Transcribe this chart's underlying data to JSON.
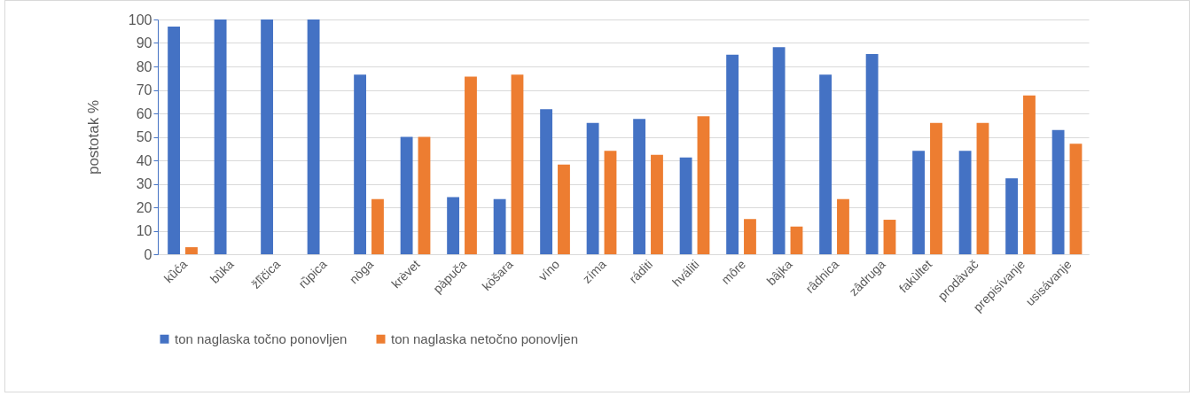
{
  "chart_data": {
    "type": "bar",
    "ylabel": "postotak %",
    "categories": [
      "kȕća",
      "bȕka",
      "žlȉčica",
      "rȕpica",
      "nòga",
      "krèvet",
      "pàpuča",
      "kòšara",
      "víno",
      "zíma",
      "ráditi",
      "hváliti",
      "môre",
      "bâjka",
      "râdnica",
      "zâdruga",
      "fakùltet",
      "prodàvač",
      "prepisívanje",
      "usisávanje"
    ],
    "series": [
      {
        "name": "ton naglaska točno ponovljen",
        "color": "#4472c4",
        "values": [
          97,
          100,
          100,
          100,
          76.5,
          50,
          24.3,
          23.5,
          61.8,
          55.9,
          57.6,
          41.2,
          85,
          88.2,
          76.5,
          85.3,
          44.1,
          44.1,
          32.4,
          52.9
        ]
      },
      {
        "name": "ton naglaska netočno ponovljen",
        "color": "#ed7d31",
        "values": [
          3,
          0,
          0,
          0,
          23.5,
          50,
          75.7,
          76.5,
          38.2,
          44.1,
          42.4,
          58.8,
          15,
          11.8,
          23.5,
          14.7,
          55.9,
          55.9,
          67.6,
          47.1
        ]
      }
    ],
    "ylim": [
      0,
      100
    ],
    "yticks": [
      0,
      10,
      20,
      30,
      40,
      50,
      60,
      70,
      80,
      90,
      100
    ],
    "grid": "y",
    "legend": "bottom"
  }
}
